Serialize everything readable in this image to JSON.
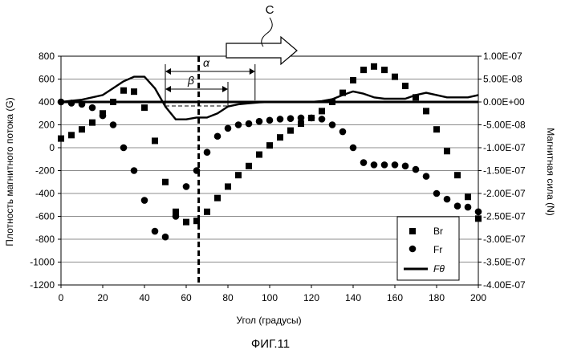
{
  "figure": {
    "caption": "ФИГ.11",
    "arrow_label": "C",
    "alpha_label": "α",
    "beta_label": "β"
  },
  "chart_data": {
    "type": "scatter",
    "xlabel": "Угол (градусы)",
    "ylabel_left": "Плотность магнитного потока (G)",
    "ylabel_right": "Магнитная сила (N)",
    "xlim": [
      0,
      200
    ],
    "ylim_left": [
      -1200,
      800
    ],
    "ylim_right": [
      -4e-07,
      1e-07
    ],
    "x_ticks": [
      "0",
      "20",
      "40",
      "60",
      "80",
      "100",
      "120",
      "140",
      "160",
      "180",
      "200"
    ],
    "y_ticks_left": [
      "800",
      "600",
      "400",
      "200",
      "0",
      "-200",
      "-400",
      "-600",
      "-800",
      "-1000",
      "-1200"
    ],
    "y_ticks_right": [
      "1.00E-07",
      "5.00E-08",
      "0.00E+00",
      "-5.00E-08",
      "-1.00E-07",
      "-1.50E-07",
      "-2.00E-07",
      "-2.50E-07",
      "-3.00E-07",
      "-3.50E-07",
      "-4.00E-07"
    ],
    "grid": true,
    "legend": "bottom-right",
    "vertical_marker_x": 66,
    "alpha_range": [
      50,
      93
    ],
    "beta_range": [
      50,
      80
    ],
    "series": [
      {
        "name": "Br",
        "marker": "square",
        "axis": "left",
        "x": [
          0,
          5,
          10,
          15,
          20,
          25,
          30,
          35,
          40,
          45,
          50,
          55,
          60,
          65,
          70,
          75,
          80,
          85,
          90,
          95,
          100,
          105,
          110,
          115,
          120,
          125,
          130,
          135,
          140,
          145,
          150,
          155,
          160,
          165,
          170,
          175,
          180,
          185,
          190,
          195,
          200
        ],
        "y": [
          80,
          110,
          160,
          220,
          300,
          400,
          500,
          490,
          350,
          60,
          -300,
          -560,
          -650,
          -640,
          -560,
          -440,
          -340,
          -240,
          -160,
          -60,
          20,
          90,
          150,
          210,
          260,
          320,
          400,
          480,
          590,
          680,
          710,
          680,
          620,
          540,
          440,
          320,
          160,
          -30,
          -240,
          -430,
          -620
        ]
      },
      {
        "name": "Fr",
        "marker": "circle",
        "axis": "left",
        "x": [
          0,
          5,
          10,
          15,
          20,
          25,
          30,
          35,
          40,
          45,
          50,
          55,
          60,
          65,
          70,
          75,
          80,
          85,
          90,
          95,
          100,
          105,
          110,
          115,
          120,
          125,
          130,
          135,
          140,
          145,
          150,
          155,
          160,
          165,
          170,
          175,
          180,
          185,
          190,
          195,
          200
        ],
        "y": [
          400,
          390,
          380,
          350,
          280,
          200,
          0,
          -200,
          -460,
          -730,
          -780,
          -600,
          -340,
          -200,
          -40,
          100,
          170,
          200,
          210,
          230,
          240,
          250,
          255,
          260,
          260,
          250,
          200,
          140,
          0,
          -130,
          -150,
          -150,
          -150,
          -160,
          -190,
          -250,
          -400,
          -450,
          -510,
          -520,
          -560
        ]
      },
      {
        "name": "Fθ",
        "marker": "line",
        "axis": "right",
        "x": [
          0,
          10,
          20,
          25,
          30,
          35,
          40,
          45,
          50,
          55,
          60,
          65,
          70,
          75,
          80,
          85,
          90,
          95,
          100,
          110,
          120,
          125,
          130,
          135,
          140,
          145,
          150,
          155,
          160,
          165,
          170,
          175,
          180,
          185,
          190,
          195,
          200
        ],
        "y": [
          0.0,
          5e-09,
          1.5e-08,
          3e-08,
          4.5e-08,
          5.5e-08,
          5.5e-08,
          3e-08,
          -1e-08,
          -3.8e-08,
          -3.8e-08,
          -3.4e-08,
          -3.4e-08,
          -2.5e-08,
          -1e-08,
          -5e-09,
          -3e-09,
          -1e-09,
          0.0,
          0.0,
          0.0,
          2e-09,
          6e-09,
          1.5e-08,
          2.3e-08,
          1.8e-08,
          1e-08,
          7e-09,
          7e-09,
          7e-09,
          1.5e-08,
          2e-08,
          1.5e-08,
          1e-08,
          1e-08,
          1e-08,
          1.5e-08
        ]
      }
    ]
  }
}
